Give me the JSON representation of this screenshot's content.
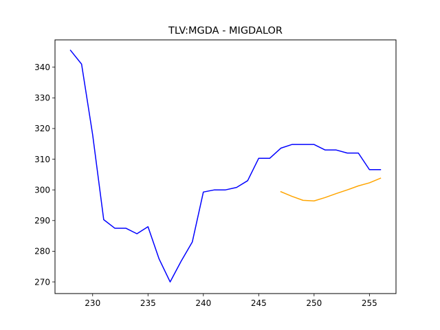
{
  "chart_data": {
    "type": "line",
    "title": "TLV:MGDA - MIGDALOR",
    "xlabel": "",
    "ylabel": "",
    "xlim": [
      226.6,
      257.4
    ],
    "ylim": [
      266.2,
      348.9
    ],
    "xticks": [
      230,
      235,
      240,
      245,
      250,
      255
    ],
    "yticks": [
      270,
      280,
      290,
      300,
      310,
      320,
      330,
      340
    ],
    "grid": false,
    "series": [
      {
        "color": "#0000ff",
        "x": [
          228,
          229,
          230,
          231,
          232,
          233,
          234,
          235,
          236,
          237,
          238,
          239,
          240,
          241,
          242,
          243,
          244,
          245,
          246,
          247,
          248,
          249,
          250,
          251,
          252,
          253,
          254,
          255,
          256
        ],
        "y": [
          345.5,
          341.0,
          318.0,
          290.3,
          287.5,
          287.5,
          285.7,
          288.0,
          277.5,
          270.0,
          276.8,
          283.0,
          299.3,
          300.0,
          300.0,
          300.8,
          303.0,
          310.3,
          310.3,
          313.6,
          314.8,
          314.8,
          314.8,
          313.0,
          313.0,
          312.0,
          312.0,
          306.6,
          306.6
        ]
      },
      {
        "color": "#ffa500",
        "x": [
          247,
          248,
          249,
          250,
          251,
          252,
          253,
          254,
          255,
          256
        ],
        "y": [
          299.4,
          297.9,
          296.6,
          296.4,
          297.5,
          298.8,
          300.0,
          301.3,
          302.3,
          303.8
        ]
      }
    ]
  }
}
